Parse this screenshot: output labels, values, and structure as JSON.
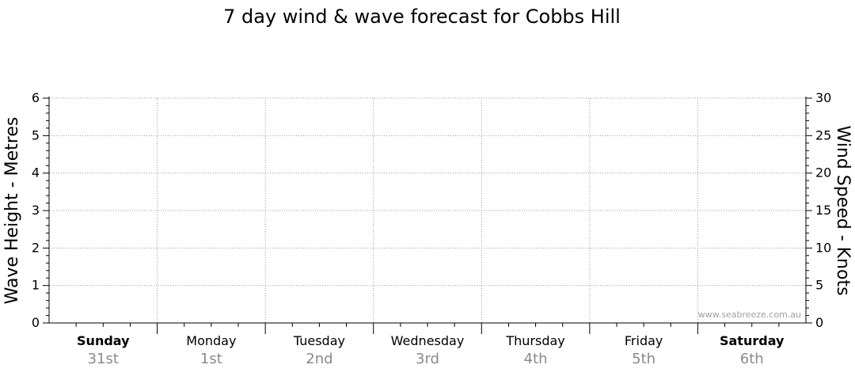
{
  "chart_data": {
    "type": "line",
    "title": "7 day wind & wave forecast for Cobbs Hill",
    "ylabel_left": "Wave Height - Metres",
    "ylabel_right": "Wind Speed - Knots",
    "ylim_left": [
      0,
      6
    ],
    "ylim_right": [
      0,
      30
    ],
    "yticks_left": [
      "0",
      "1",
      "2",
      "3",
      "4",
      "5",
      "6"
    ],
    "yticks_right": [
      "0",
      "5",
      "10",
      "15",
      "20",
      "25",
      "30"
    ],
    "categories": [
      {
        "day": "Sunday",
        "date": "31st",
        "bold": true
      },
      {
        "day": "Monday",
        "date": "1st",
        "bold": false
      },
      {
        "day": "Tuesday",
        "date": "2nd",
        "bold": false
      },
      {
        "day": "Wednesday",
        "date": "3rd",
        "bold": false
      },
      {
        "day": "Thursday",
        "date": "4th",
        "bold": false
      },
      {
        "day": "Friday",
        "date": "5th",
        "bold": false
      },
      {
        "day": "Saturday",
        "date": "6th",
        "bold": true
      }
    ],
    "series": [],
    "grid": true,
    "watermark": "www.seabreeze.com.au"
  },
  "colors": {
    "grid": "#999999",
    "axis": "#000000",
    "date_text": "#8a8a8a",
    "watermark": "#a0a0a0"
  }
}
